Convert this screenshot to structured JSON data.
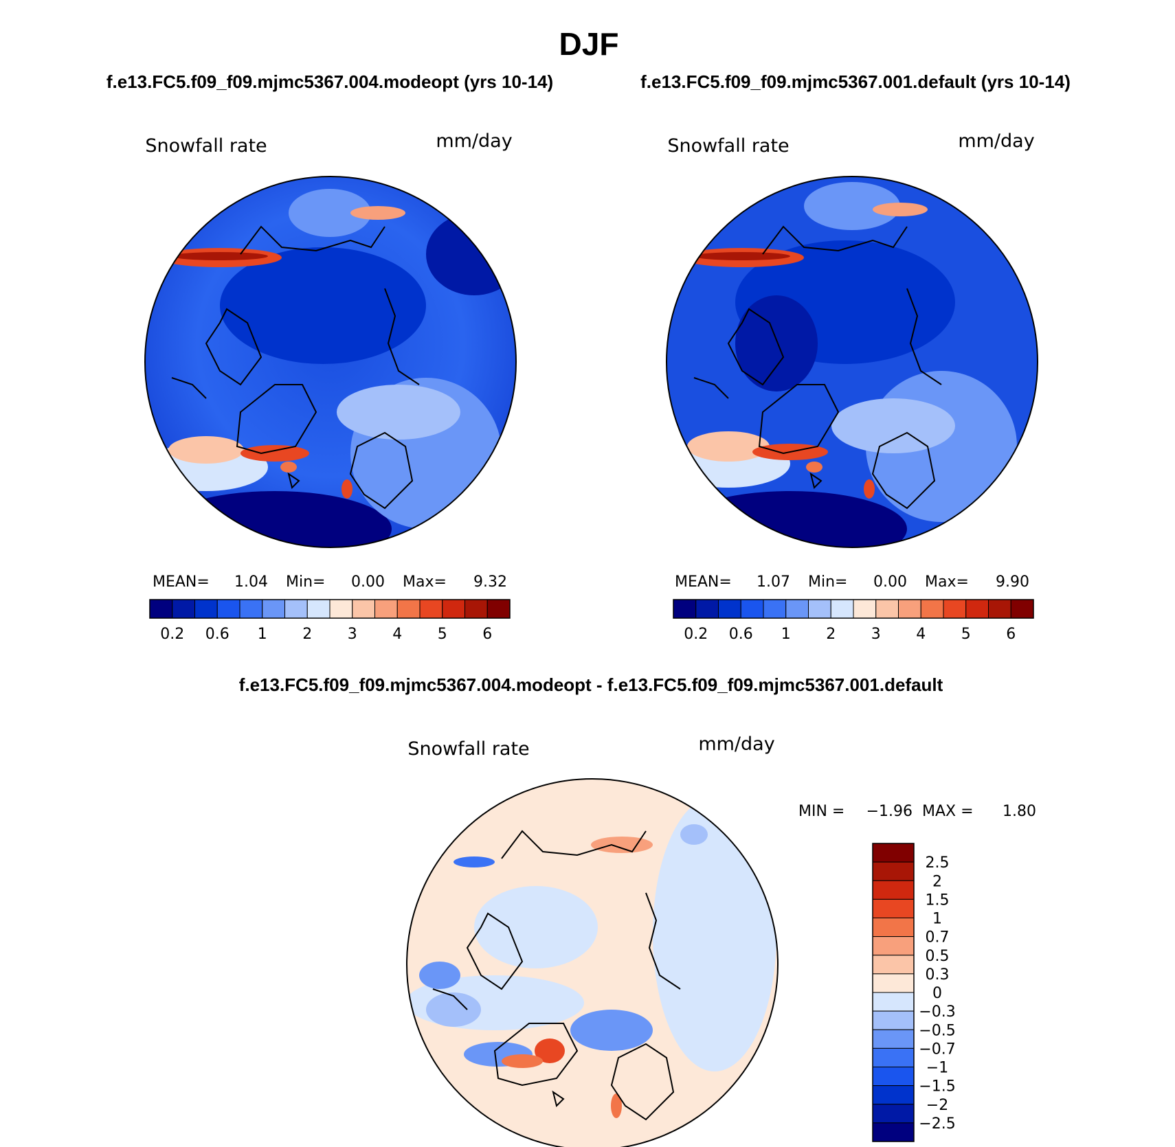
{
  "title": "DJF",
  "colors": {
    "seq": [
      "#00007f",
      "#0019a6",
      "#0033cc",
      "#1a55ee",
      "#3a72f5",
      "#6a96f7",
      "#a4c0fa",
      "#d6e6fd",
      "#fde8d8",
      "#fbc5a8",
      "#f8a07c",
      "#f27548",
      "#e84722",
      "#d0280f",
      "#a81606",
      "#800000"
    ],
    "div": [
      "#00007f",
      "#0019a6",
      "#0033cc",
      "#1a55ee",
      "#3a72f5",
      "#6a96f7",
      "#a4c0fa",
      "#d6e6fd",
      "#fde8d8",
      "#fbc5a8",
      "#f8a07c",
      "#f27548",
      "#e84722",
      "#d0280f",
      "#a81606",
      "#800000"
    ],
    "coast": "#000000"
  },
  "panels": [
    {
      "case_title": "f.e13.FC5.f09_f09.mjmc5367.004.modeopt (yrs 10-14)",
      "variable": "Snowfall rate",
      "units": "mm/day",
      "stats": {
        "mean_label": "MEAN=",
        "mean": "1.04",
        "min_label": "Min=",
        "min": "0.00",
        "max_label": "Max=",
        "max": "9.32"
      }
    },
    {
      "case_title": "f.e13.FC5.f09_f09.mjmc5367.001.default (yrs 10-14)",
      "variable": "Snowfall rate",
      "units": "mm/day",
      "stats": {
        "mean_label": "MEAN=",
        "mean": "1.07",
        "min_label": "Min=",
        "min": "0.00",
        "max_label": "Max=",
        "max": "9.90"
      }
    }
  ],
  "diff_panel": {
    "case_title": "f.e13.FC5.f09_f09.mjmc5367.004.modeopt - f.e13.FC5.f09_f09.mjmc5367.001.default",
    "variable": "Snowfall rate",
    "units": "mm/day",
    "stats": {
      "min_label": "MIN =",
      "min": "−1.96",
      "max_label": "MAX =",
      "max": "1.80"
    }
  },
  "chart_data": [
    {
      "type": "heatmap",
      "projection": "north polar stereographic",
      "title": "Snowfall rate",
      "units": "mm/day",
      "colorbar_levels": [
        0.2,
        0.4,
        0.6,
        0.8,
        1,
        1.5,
        2,
        2.5,
        3,
        3.5,
        4,
        4.5,
        5,
        5.5,
        6
      ],
      "colorbar_tick_labels": [
        "0.2",
        "0.6",
        "1",
        "2",
        "3",
        "4",
        "5",
        "6"
      ],
      "mean": 1.04,
      "min": 0.0,
      "max": 9.32
    },
    {
      "type": "heatmap",
      "projection": "north polar stereographic",
      "title": "Snowfall rate",
      "units": "mm/day",
      "colorbar_levels": [
        0.2,
        0.4,
        0.6,
        0.8,
        1,
        1.5,
        2,
        2.5,
        3,
        3.5,
        4,
        4.5,
        5,
        5.5,
        6
      ],
      "colorbar_tick_labels": [
        "0.2",
        "0.6",
        "1",
        "2",
        "3",
        "4",
        "5",
        "6"
      ],
      "mean": 1.07,
      "min": 0.0,
      "max": 9.9
    },
    {
      "type": "heatmap",
      "projection": "north polar stereographic",
      "title": "Snowfall rate",
      "units": "mm/day",
      "colorbar_levels": [
        -2.5,
        -2,
        -1.5,
        -1,
        -0.7,
        -0.5,
        -0.3,
        0,
        0.3,
        0.5,
        0.7,
        1,
        1.5,
        2,
        2.5
      ],
      "colorbar_tick_labels": [
        "2.5",
        "2",
        "1.5",
        "1",
        "0.7",
        "0.5",
        "0.3",
        "0",
        "−0.3",
        "−0.5",
        "−0.7",
        "−1",
        "−1.5",
        "−2",
        "−2.5"
      ],
      "min": -1.96,
      "max": 1.8
    }
  ]
}
